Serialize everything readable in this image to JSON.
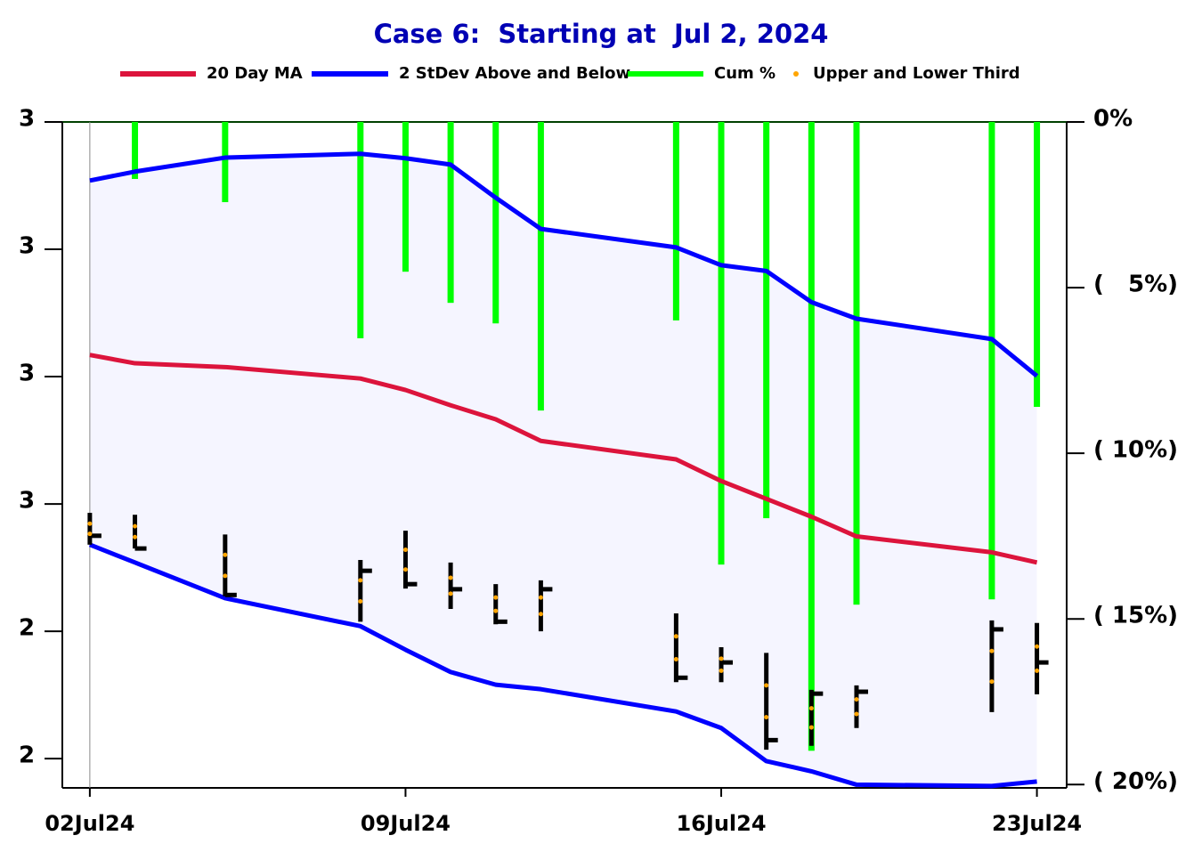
{
  "chart_data": {
    "type": "line",
    "title": "Case 6:  Starting at  Jul 2, 2024",
    "x": [
      "2024-07-02",
      "2024-07-03",
      "2024-07-05",
      "2024-07-08",
      "2024-07-09",
      "2024-07-10",
      "2024-07-11",
      "2024-07-12",
      "2024-07-15",
      "2024-07-16",
      "2024-07-17",
      "2024-07-18",
      "2024-07-19",
      "2024-07-22",
      "2024-07-23"
    ],
    "xlim": [
      "2024-07-01T09:22",
      "2024-07-23T15:50"
    ],
    "xticks": [
      {
        "value": "2024-07-02",
        "label": "02Jul24"
      },
      {
        "value": "2024-07-09",
        "label": "09Jul24"
      },
      {
        "value": "2024-07-16",
        "label": "16Jul24"
      },
      {
        "value": "2024-07-23",
        "label": "23Jul24"
      }
    ],
    "ylim": [
      2.154,
      3.2
    ],
    "yticks": [
      {
        "value": 3.2,
        "label": "3"
      },
      {
        "value": 3.0,
        "label": "3"
      },
      {
        "value": 2.8,
        "label": "3"
      },
      {
        "value": 2.6,
        "label": "3"
      },
      {
        "value": 2.4,
        "label": "2"
      },
      {
        "value": 2.2,
        "label": "2"
      }
    ],
    "y2lim": [
      -20.1,
      0
    ],
    "y2ticks": [
      {
        "value": 0,
        "label": "0%"
      },
      {
        "value": -5,
        "label": "(   5%)"
      },
      {
        "value": -10,
        "label": "( 10%)"
      },
      {
        "value": -15,
        "label": "( 15%)"
      },
      {
        "value": -20,
        "label": "( 20%)"
      }
    ],
    "band_fill": "#f5f5ff",
    "series": [
      {
        "name": "20 Day MA",
        "color": "#dc143c",
        "values": [
          2.834,
          2.821,
          2.815,
          2.797,
          2.779,
          2.755,
          2.733,
          2.699,
          2.67,
          2.636,
          2.608,
          2.58,
          2.549,
          2.524,
          2.508
        ]
      },
      {
        "name": "2 StDev Above and Below",
        "color": "#0000ff",
        "upper": [
          3.108,
          3.122,
          3.144,
          3.15,
          3.143,
          3.133,
          3.081,
          3.032,
          3.003,
          2.975,
          2.966,
          2.917,
          2.891,
          2.859,
          2.801
        ],
        "lower": [
          2.536,
          2.508,
          2.452,
          2.408,
          2.371,
          2.336,
          2.316,
          2.309,
          2.274,
          2.248,
          2.196,
          2.18,
          2.159,
          2.157,
          2.164
        ]
      },
      {
        "name": "Cum %",
        "color": "#00ff00",
        "axis": "y2",
        "values": [
          0,
          -1.72,
          -2.42,
          -6.53,
          -4.52,
          -5.46,
          -6.08,
          -8.71,
          -5.99,
          -13.36,
          -11.96,
          -18.98,
          -14.57,
          -14.41,
          -8.6
        ]
      },
      {
        "name": "Upper and Lower Third",
        "color": "#ffa500",
        "upper": [
          2.569,
          2.565,
          2.52,
          2.48,
          2.528,
          2.484,
          2.453,
          2.453,
          2.392,
          2.357,
          2.315,
          2.279,
          2.293,
          2.369,
          2.376
        ],
        "lower": [
          2.553,
          2.548,
          2.487,
          2.447,
          2.497,
          2.459,
          2.432,
          2.427,
          2.356,
          2.338,
          2.265,
          2.249,
          2.27,
          2.321,
          2.338
        ]
      }
    ],
    "bars": {
      "color": "#000000",
      "high": [
        2.586,
        2.583,
        2.552,
        2.512,
        2.558,
        2.508,
        2.474,
        2.48,
        2.428,
        2.375,
        2.366,
        2.308,
        2.315,
        2.417,
        2.413
      ],
      "low": [
        2.536,
        2.53,
        2.455,
        2.415,
        2.467,
        2.435,
        2.411,
        2.4,
        2.32,
        2.32,
        2.214,
        2.22,
        2.248,
        2.273,
        2.301
      ],
      "close": [
        2.55,
        2.53,
        2.457,
        2.495,
        2.474,
        2.466,
        2.415,
        2.466,
        2.327,
        2.351,
        2.229,
        2.302,
        2.305,
        2.403,
        2.351
      ]
    }
  }
}
